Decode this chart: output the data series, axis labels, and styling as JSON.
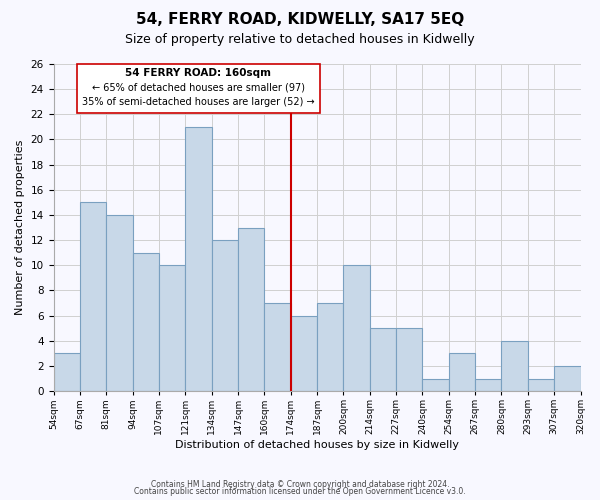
{
  "title": "54, FERRY ROAD, KIDWELLY, SA17 5EQ",
  "subtitle": "Size of property relative to detached houses in Kidwelly",
  "xlabel": "Distribution of detached houses by size in Kidwelly",
  "ylabel": "Number of detached properties",
  "footer_line1": "Contains HM Land Registry data © Crown copyright and database right 2024.",
  "footer_line2": "Contains public sector information licensed under the Open Government Licence v3.0.",
  "bin_edges": [
    "54sqm",
    "67sqm",
    "81sqm",
    "94sqm",
    "107sqm",
    "121sqm",
    "134sqm",
    "147sqm",
    "160sqm",
    "174sqm",
    "187sqm",
    "200sqm",
    "214sqm",
    "227sqm",
    "240sqm",
    "254sqm",
    "267sqm",
    "280sqm",
    "293sqm",
    "307sqm",
    "320sqm"
  ],
  "bar_values": [
    3,
    15,
    14,
    11,
    10,
    21,
    12,
    13,
    7,
    6,
    7,
    10,
    5,
    5,
    1,
    3,
    1,
    4,
    1,
    2
  ],
  "bar_color": "#c8d8e8",
  "bar_edge_color": "#7aa0c0",
  "highlight_index": 8,
  "highlight_line_color": "#cc0000",
  "annotation_box_edge_color": "#cc0000",
  "annotation_title": "54 FERRY ROAD: 160sqm",
  "annotation_line1": "← 65% of detached houses are smaller (97)",
  "annotation_line2": "35% of semi-detached houses are larger (52) →",
  "ylim": [
    0,
    26
  ],
  "yticks": [
    0,
    2,
    4,
    6,
    8,
    10,
    12,
    14,
    16,
    18,
    20,
    22,
    24,
    26
  ],
  "grid_color": "#d0d0d0",
  "background_color": "#f8f8ff",
  "figsize": [
    6.0,
    5.0
  ],
  "dpi": 100
}
